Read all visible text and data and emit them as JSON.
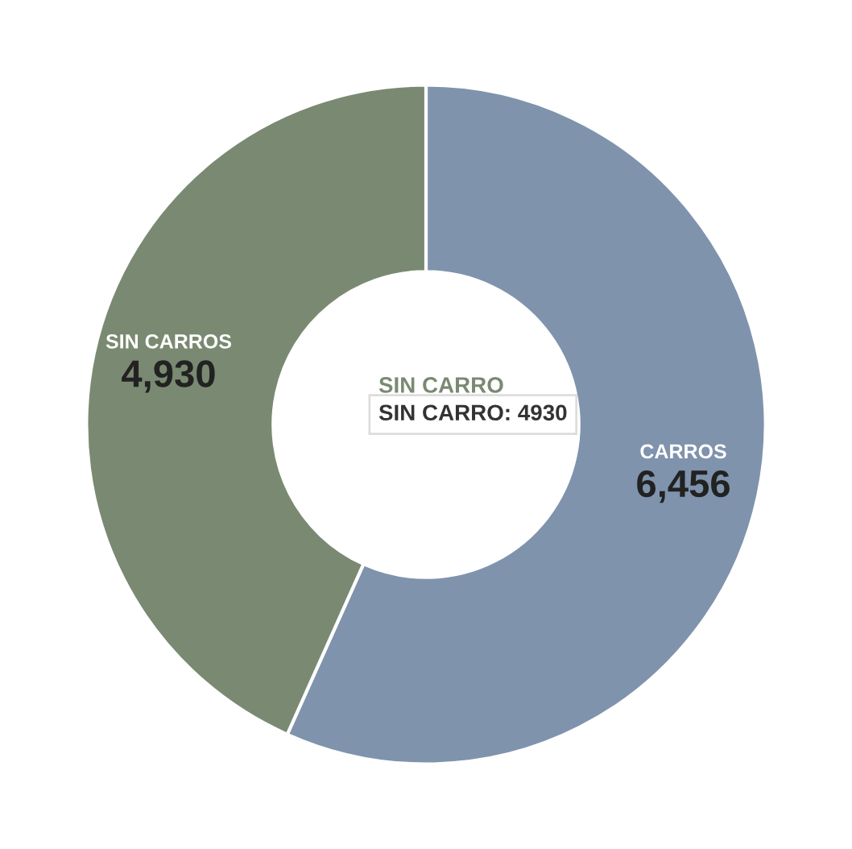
{
  "chart_data": {
    "type": "donut",
    "categories": [
      "CARROS",
      "SIN CARROS"
    ],
    "values": [
      6456,
      4930
    ],
    "colors": [
      "#7f93ad",
      "#7a8a72"
    ],
    "value_labels": [
      "6,456",
      "4,930"
    ],
    "annotations": [
      "SIN CARRO",
      "SIN CARRO: 4930"
    ],
    "legend": false
  }
}
